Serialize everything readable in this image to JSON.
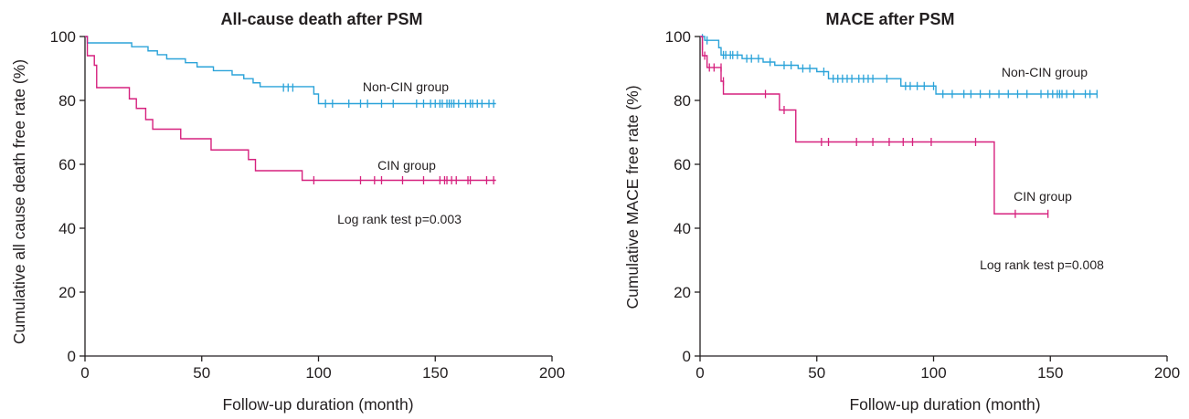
{
  "chart_data": [
    {
      "type": "line",
      "subtype": "kaplan-meier",
      "title": "All-cause death after PSM",
      "xlabel": "Follow-up duration (month)",
      "ylabel": "Cumulative all cause death free rate (%)",
      "xlim": [
        0,
        200
      ],
      "ylim": [
        0,
        100
      ],
      "x_ticks": [
        "0",
        "50",
        "100",
        "150",
        "200"
      ],
      "y_ticks": [
        "0",
        "20",
        "40",
        "60",
        "80",
        "100"
      ],
      "grid": false,
      "annotation": "Log rank test p=0.003",
      "series": [
        {
          "name": "Non-CIN group",
          "color": "#2ba3d9",
          "steps": [
            [
              0,
              100
            ],
            [
              1,
              98
            ],
            [
              20,
              96.8
            ],
            [
              27,
              95.5
            ],
            [
              31,
              94.3
            ],
            [
              35,
              93
            ],
            [
              43,
              91.8
            ],
            [
              48,
              90.5
            ],
            [
              55,
              89.3
            ],
            [
              63,
              88
            ],
            [
              68,
              86.8
            ],
            [
              72,
              85.5
            ],
            [
              75,
              84.3
            ],
            [
              98,
              82
            ],
            [
              100,
              79
            ],
            [
              176,
              79
            ]
          ],
          "censored": [
            [
              85,
              84
            ],
            [
              87,
              84
            ],
            [
              89,
              84
            ],
            [
              103,
              79
            ],
            [
              106,
              79
            ],
            [
              113,
              79
            ],
            [
              118,
              79
            ],
            [
              121,
              79
            ],
            [
              127,
              79
            ],
            [
              132,
              79
            ],
            [
              142,
              79
            ],
            [
              145,
              79
            ],
            [
              148,
              79
            ],
            [
              150,
              79
            ],
            [
              152,
              79
            ],
            [
              153,
              79
            ],
            [
              155,
              79
            ],
            [
              156,
              79
            ],
            [
              157,
              79
            ],
            [
              158,
              79
            ],
            [
              160,
              79
            ],
            [
              163,
              79
            ],
            [
              165,
              79
            ],
            [
              166,
              79
            ],
            [
              168,
              79
            ],
            [
              170,
              79
            ],
            [
              173,
              79
            ],
            [
              175,
              79
            ]
          ]
        },
        {
          "name": "CIN group",
          "color": "#d6217e",
          "steps": [
            [
              0,
              100
            ],
            [
              1,
              94
            ],
            [
              4,
              91
            ],
            [
              5,
              84
            ],
            [
              19,
              80.5
            ],
            [
              22,
              77.5
            ],
            [
              26,
              74
            ],
            [
              29,
              71
            ],
            [
              41,
              68
            ],
            [
              54,
              64.5
            ],
            [
              70,
              61.5
            ],
            [
              73,
              58
            ],
            [
              93,
              55
            ],
            [
              176,
              55
            ]
          ],
          "censored": [
            [
              98,
              55
            ],
            [
              118,
              55
            ],
            [
              124,
              55
            ],
            [
              127,
              55
            ],
            [
              136,
              55
            ],
            [
              145,
              55
            ],
            [
              152,
              55
            ],
            [
              154,
              55
            ],
            [
              155,
              55
            ],
            [
              157,
              55
            ],
            [
              159,
              55
            ],
            [
              164,
              55
            ],
            [
              165,
              55
            ],
            [
              172,
              55
            ],
            [
              175,
              55
            ]
          ]
        }
      ]
    },
    {
      "type": "line",
      "subtype": "kaplan-meier",
      "title": "MACE after PSM",
      "xlabel": "Follow-up duration (month)",
      "ylabel": "Cumulative MACE free rate (%)",
      "xlim": [
        0,
        200
      ],
      "ylim": [
        0,
        100
      ],
      "x_ticks": [
        "0",
        "50",
        "100",
        "150",
        "200"
      ],
      "y_ticks": [
        "0",
        "20",
        "40",
        "60",
        "80",
        "100"
      ],
      "grid": false,
      "annotation": "Log rank test p=0.008",
      "series": [
        {
          "name": "Non-CIN group",
          "color": "#2ba3d9",
          "steps": [
            [
              0,
              100
            ],
            [
              2,
              98.8
            ],
            [
              8,
              96.5
            ],
            [
              9,
              94.2
            ],
            [
              18,
              93.1
            ],
            [
              27,
              92
            ],
            [
              32,
              91
            ],
            [
              42,
              90
            ],
            [
              50,
              89
            ],
            [
              55,
              86.8
            ],
            [
              74,
              86.8
            ],
            [
              86,
              84.5
            ],
            [
              100,
              84.5
            ],
            [
              101,
              82
            ],
            [
              170,
              82
            ]
          ],
          "censored": [
            [
              1,
              99.5
            ],
            [
              3,
              98.8
            ],
            [
              10,
              94.2
            ],
            [
              11,
              94.2
            ],
            [
              13,
              94.2
            ],
            [
              14,
              94.2
            ],
            [
              16,
              94.2
            ],
            [
              20,
              93.1
            ],
            [
              22,
              93.1
            ],
            [
              25,
              93.1
            ],
            [
              30,
              92
            ],
            [
              36,
              91
            ],
            [
              39,
              91
            ],
            [
              44,
              90
            ],
            [
              47,
              90
            ],
            [
              53,
              89
            ],
            [
              57,
              86.8
            ],
            [
              59,
              86.8
            ],
            [
              61,
              86.8
            ],
            [
              63,
              86.8
            ],
            [
              65,
              86.8
            ],
            [
              68,
              86.8
            ],
            [
              70,
              86.8
            ],
            [
              72,
              86.8
            ],
            [
              74,
              86.8
            ],
            [
              80,
              86.8
            ],
            [
              88,
              84.5
            ],
            [
              90,
              84.5
            ],
            [
              93,
              84.5
            ],
            [
              96,
              84.5
            ],
            [
              100,
              84.5
            ],
            [
              104,
              82
            ],
            [
              108,
              82
            ],
            [
              113,
              82
            ],
            [
              116,
              82
            ],
            [
              120,
              82
            ],
            [
              124,
              82
            ],
            [
              128,
              82
            ],
            [
              132,
              82
            ],
            [
              136,
              82
            ],
            [
              140,
              82
            ],
            [
              146,
              82
            ],
            [
              149,
              82
            ],
            [
              151,
              82
            ],
            [
              153,
              82
            ],
            [
              154,
              82
            ],
            [
              155,
              82
            ],
            [
              157,
              82
            ],
            [
              160,
              82
            ],
            [
              165,
              82
            ],
            [
              167,
              82
            ],
            [
              170,
              82
            ]
          ]
        },
        {
          "name": "CIN group",
          "color": "#d6217e",
          "steps": [
            [
              0,
              100
            ],
            [
              1,
              94
            ],
            [
              3,
              90.3
            ],
            [
              9,
              86
            ],
            [
              10,
              82
            ],
            [
              34,
              77
            ],
            [
              41,
              67
            ],
            [
              126,
              67
            ],
            [
              126,
              44.5
            ],
            [
              149,
              44.5
            ]
          ],
          "censored": [
            [
              1,
              97
            ],
            [
              2,
              94
            ],
            [
              4,
              90.3
            ],
            [
              6,
              90.3
            ],
            [
              9,
              90.3
            ],
            [
              10,
              86
            ],
            [
              28,
              82
            ],
            [
              36,
              77
            ],
            [
              52,
              67
            ],
            [
              55,
              67
            ],
            [
              67,
              67
            ],
            [
              74,
              67
            ],
            [
              81,
              67
            ],
            [
              87,
              67
            ],
            [
              91,
              67
            ],
            [
              99,
              67
            ],
            [
              118,
              67
            ],
            [
              135,
              44.5
            ],
            [
              149,
              44.5
            ]
          ]
        }
      ]
    }
  ]
}
